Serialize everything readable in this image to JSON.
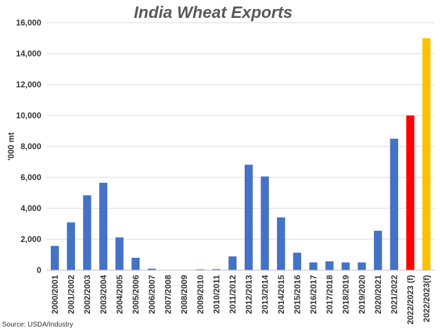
{
  "chart_data": {
    "type": "bar",
    "title": "India Wheat Exports",
    "ylabel": "'000 mt",
    "xlabel": "",
    "ylim": [
      0,
      16000
    ],
    "yticks": [
      0,
      2000,
      4000,
      6000,
      8000,
      10000,
      12000,
      14000,
      16000
    ],
    "ytick_labels": [
      "0",
      "2,000",
      "4,000",
      "6,000",
      "8,000",
      "10,000",
      "12,000",
      "14,000",
      "16,000"
    ],
    "grid": true,
    "categories": [
      "2000/2001",
      "2001/2002",
      "2002/2003",
      "2003/2004",
      "2004/2005",
      "2005/2006",
      "2006/2007",
      "2007/2008",
      "2008/2009",
      "2009/2010",
      "2010/2011",
      "2011/2012",
      "2012/2013",
      "2013/2014",
      "2014/2015",
      "2015/2016",
      "2016/2017",
      "2017/2018",
      "2018/2019",
      "2019/2020",
      "2020/2021",
      "2021/2022",
      "2022/2023 (f)",
      "2022/2023(f)"
    ],
    "values": [
      1570,
      3090,
      4840,
      5650,
      2120,
      800,
      100,
      20,
      15,
      55,
      65,
      890,
      6820,
      6060,
      3410,
      1130,
      500,
      570,
      500,
      500,
      2550,
      8500,
      10000,
      15000
    ],
    "colors": [
      "#4472c4",
      "#4472c4",
      "#4472c4",
      "#4472c4",
      "#4472c4",
      "#4472c4",
      "#4472c4",
      "#4472c4",
      "#4472c4",
      "#4472c4",
      "#4472c4",
      "#4472c4",
      "#4472c4",
      "#4472c4",
      "#4472c4",
      "#4472c4",
      "#4472c4",
      "#4472c4",
      "#4472c4",
      "#4472c4",
      "#4472c4",
      "#4472c4",
      "#ff0000",
      "#ffc000"
    ]
  },
  "source": "Source: USDA/Industry"
}
